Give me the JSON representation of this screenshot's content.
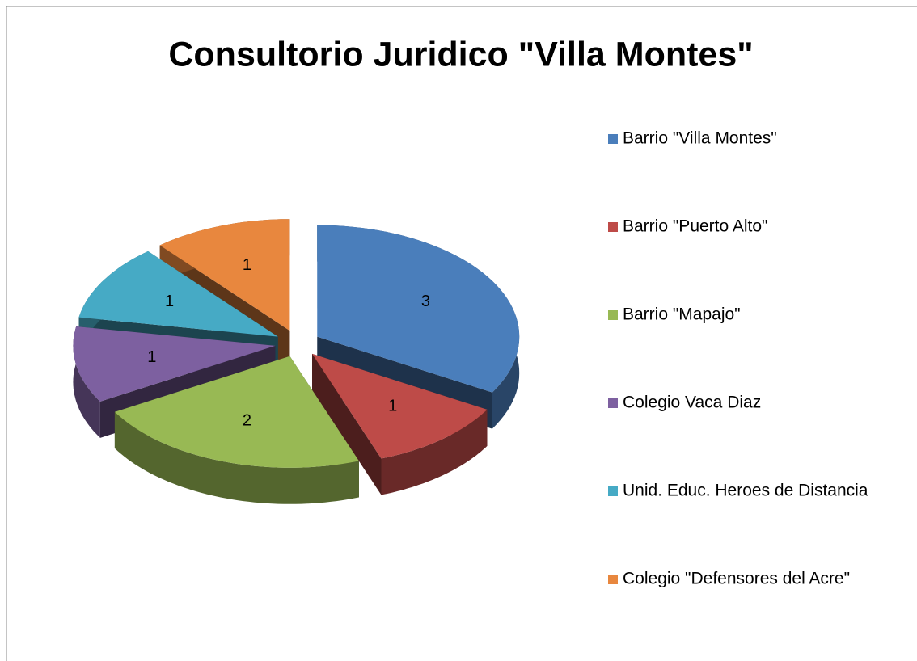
{
  "chart_data": {
    "type": "pie3d",
    "title": "Consultorio Juridico \"Villa Montes\"",
    "categories": [
      "Barrio \"Villa Montes\"",
      "Barrio \"Puerto Alto\"",
      "Barrio \"Mapajo\"",
      "Colegio Vaca Diaz",
      "Unid. Educ. Heroes de Distancia",
      "Colegio \"Defensores del Acre\""
    ],
    "values": [
      3,
      1,
      2,
      1,
      1,
      1
    ],
    "colors": [
      "#4a7ebb",
      "#be4b48",
      "#98b954",
      "#7d60a0",
      "#46aac5",
      "#e8873e"
    ],
    "legend": "right"
  }
}
